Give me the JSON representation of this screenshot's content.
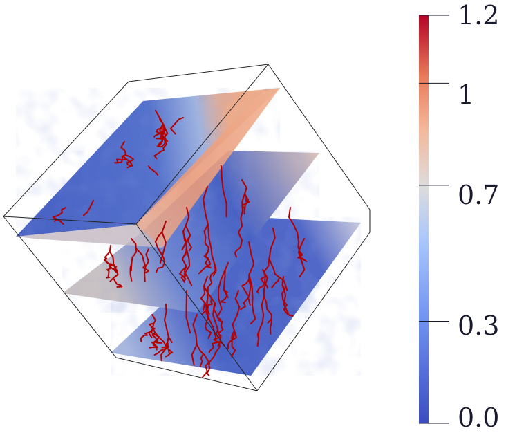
{
  "colorbar": {
    "range": [
      0.0,
      1.2
    ],
    "ticks": [
      {
        "label": "1.2",
        "value": 1.2
      },
      {
        "label": "1",
        "value": 1.0
      },
      {
        "label": "0.7",
        "value": 0.7
      },
      {
        "label": "0.3",
        "value": 0.3
      },
      {
        "label": "0.0",
        "value": 0.0
      }
    ],
    "colors": {
      "low": "#3b4cc0",
      "mid": "#dddcdc",
      "high": "#b40426"
    }
  },
  "colors": {
    "bounding_box": "#222222",
    "root_network": "#b30000",
    "slice_base": "#4560c2",
    "slice_edge": "#e9a080"
  }
}
